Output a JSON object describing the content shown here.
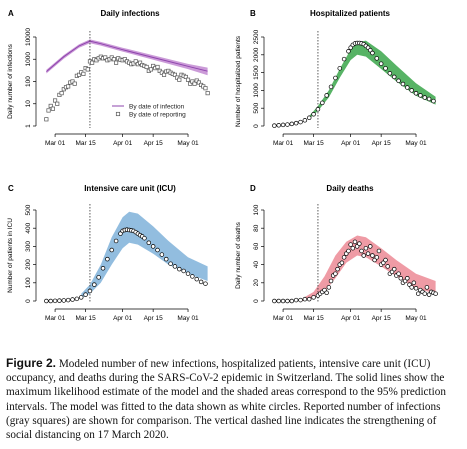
{
  "figure": {
    "caption_label": "Figure 2.",
    "caption_text": "Modeled number of new infections, hospitalized patients, intensive care unit (ICU) occupancy, and deaths during the SARS-CoV-2 epidemic in Switzerland. The solid lines show the maximum likelihood estimate of the model and the shaded areas correspond to the 95% prediction intervals. The model was fitted to the data shown as white circles. Reported number of infections (gray squares) are shown for comparison. The vertical dashed line indicates the strengthening of social distancing on 17 March 2020."
  },
  "chart_data": [
    {
      "panel": "A",
      "title": "Daily infections",
      "type": "line",
      "ylabel": "Daily number of infections",
      "y_scale": "log",
      "ylim": [
        1,
        10000
      ],
      "y_ticks": [
        1,
        10,
        100,
        1000,
        10000
      ],
      "y_tick_labels": [
        "1",
        "10",
        "100",
        "1000",
        "10000"
      ],
      "xlim": [
        "2020-02-24",
        "2020-05-12"
      ],
      "x_ticks": [
        "2020-03-01",
        "2020-03-15",
        "2020-04-01",
        "2020-04-15",
        "2020-05-01"
      ],
      "x_tick_labels": [
        "Mar 01",
        "Mar 15",
        "Apr 01",
        "Apr 15",
        "May 01"
      ],
      "vline": "2020-03-17",
      "band_color": "#c28ad1",
      "line_color": "#8e44ad",
      "legend": [
        "By date of infection",
        "By date of reporting"
      ],
      "series": [
        {
          "name": "By date of infection",
          "style": "line-band",
          "x": [
            "2020-02-26",
            "2020-03-05",
            "2020-03-12",
            "2020-03-17",
            "2020-03-22",
            "2020-04-01",
            "2020-04-15",
            "2020-05-01",
            "2020-05-10"
          ],
          "y": [
            280,
            1300,
            4000,
            6500,
            5000,
            2700,
            1200,
            480,
            290
          ],
          "lower": [
            230,
            1050,
            3300,
            5200,
            4100,
            2200,
            950,
            360,
            190
          ],
          "upper": [
            340,
            1550,
            4700,
            7800,
            6000,
            3300,
            1500,
            620,
            420
          ]
        },
        {
          "name": "By date of reporting",
          "style": "squares",
          "x": [
            "2020-02-26",
            "2020-02-27",
            "2020-02-28",
            "2020-02-29",
            "2020-03-01",
            "2020-03-02",
            "2020-03-03",
            "2020-03-04",
            "2020-03-05",
            "2020-03-06",
            "2020-03-07",
            "2020-03-08",
            "2020-03-09",
            "2020-03-10",
            "2020-03-11",
            "2020-03-12",
            "2020-03-13",
            "2020-03-14",
            "2020-03-15",
            "2020-03-16",
            "2020-03-17",
            "2020-03-18",
            "2020-03-19",
            "2020-03-20",
            "2020-03-21",
            "2020-03-22",
            "2020-03-23",
            "2020-03-24",
            "2020-03-25",
            "2020-03-26",
            "2020-03-27",
            "2020-03-28",
            "2020-03-29",
            "2020-03-30",
            "2020-03-31",
            "2020-04-01",
            "2020-04-02",
            "2020-04-03",
            "2020-04-04",
            "2020-04-05",
            "2020-04-06",
            "2020-04-07",
            "2020-04-08",
            "2020-04-09",
            "2020-04-10",
            "2020-04-11",
            "2020-04-12",
            "2020-04-13",
            "2020-04-14",
            "2020-04-15",
            "2020-04-16",
            "2020-04-17",
            "2020-04-18",
            "2020-04-19",
            "2020-04-20",
            "2020-04-21",
            "2020-04-22",
            "2020-04-23",
            "2020-04-24",
            "2020-04-25",
            "2020-04-26",
            "2020-04-27",
            "2020-04-28",
            "2020-04-29",
            "2020-04-30",
            "2020-05-01",
            "2020-05-02",
            "2020-05-03",
            "2020-05-04",
            "2020-05-05",
            "2020-05-06",
            "2020-05-07",
            "2020-05-08",
            "2020-05-09",
            "2020-05-10"
          ],
          "y": [
            2,
            5,
            8,
            6,
            14,
            10,
            25,
            30,
            45,
            55,
            60,
            90,
            100,
            80,
            180,
            200,
            260,
            220,
            400,
            350,
            800,
            700,
            1000,
            900,
            1100,
            1300,
            1100,
            1200,
            900,
            1000,
            1200,
            1000,
            700,
            1100,
            950,
            900,
            1000,
            800,
            700,
            600,
            650,
            800,
            600,
            700,
            550,
            500,
            450,
            300,
            350,
            500,
            400,
            450,
            300,
            250,
            200,
            280,
            300,
            250,
            220,
            200,
            150,
            120,
            200,
            180,
            160,
            120,
            80,
            100,
            80,
            110,
            90,
            70,
            60,
            50,
            30
          ]
        }
      ]
    },
    {
      "panel": "B",
      "title": "Hospitalized patients",
      "type": "line",
      "ylabel": "Number of hospitalized patients",
      "ylim": [
        0,
        2500
      ],
      "y_ticks": [
        0,
        500,
        1000,
        1500,
        2000,
        2500
      ],
      "xlim": [
        "2020-02-24",
        "2020-05-12"
      ],
      "x_ticks": [
        "2020-03-01",
        "2020-03-15",
        "2020-04-01",
        "2020-04-15",
        "2020-05-01"
      ],
      "x_tick_labels": [
        "Mar 01",
        "Mar 15",
        "Apr 01",
        "Apr 15",
        "May 01"
      ],
      "vline": "2020-03-17",
      "band_color": "#3aa64a",
      "series": [
        {
          "name": "model",
          "style": "band",
          "x": [
            "2020-03-13",
            "2020-03-17",
            "2020-03-22",
            "2020-03-27",
            "2020-04-01",
            "2020-04-04",
            "2020-04-08",
            "2020-04-15",
            "2020-04-22",
            "2020-05-01",
            "2020-05-10"
          ],
          "lower": [
            200,
            420,
            800,
            1350,
            1850,
            2000,
            1950,
            1600,
            1250,
            850,
            600
          ],
          "upper": [
            280,
            560,
            1000,
            1600,
            2150,
            2350,
            2400,
            2100,
            1700,
            1200,
            820
          ]
        },
        {
          "name": "data",
          "style": "circles",
          "x": [
            "2020-02-26",
            "2020-02-28",
            "2020-03-01",
            "2020-03-03",
            "2020-03-05",
            "2020-03-07",
            "2020-03-09",
            "2020-03-11",
            "2020-03-13",
            "2020-03-15",
            "2020-03-17",
            "2020-03-19",
            "2020-03-21",
            "2020-03-23",
            "2020-03-25",
            "2020-03-27",
            "2020-03-29",
            "2020-03-31",
            "2020-04-01",
            "2020-04-02",
            "2020-04-03",
            "2020-04-04",
            "2020-04-05",
            "2020-04-06",
            "2020-04-07",
            "2020-04-08",
            "2020-04-09",
            "2020-04-10",
            "2020-04-11",
            "2020-04-13",
            "2020-04-15",
            "2020-04-17",
            "2020-04-19",
            "2020-04-21",
            "2020-04-23",
            "2020-04-25",
            "2020-04-27",
            "2020-04-29",
            "2020-05-01",
            "2020-05-03",
            "2020-05-05",
            "2020-05-07",
            "2020-05-09"
          ],
          "y": [
            10,
            20,
            30,
            40,
            60,
            80,
            110,
            160,
            230,
            330,
            470,
            650,
            860,
            1100,
            1350,
            1620,
            1880,
            2100,
            2200,
            2280,
            2320,
            2330,
            2330,
            2320,
            2300,
            2250,
            2200,
            2130,
            2050,
            1900,
            1750,
            1620,
            1480,
            1380,
            1270,
            1180,
            1080,
            1000,
            920,
            860,
            800,
            760,
            700
          ]
        }
      ]
    },
    {
      "panel": "C",
      "title": "Intensive care unit (ICU)",
      "type": "line",
      "ylabel": "Number of patients in ICU",
      "ylim": [
        0,
        500
      ],
      "y_ticks": [
        0,
        100,
        200,
        300,
        400,
        500
      ],
      "xlim": [
        "2020-02-24",
        "2020-05-12"
      ],
      "x_ticks": [
        "2020-03-01",
        "2020-03-15",
        "2020-04-01",
        "2020-04-15",
        "2020-05-01"
      ],
      "x_tick_labels": [
        "Mar 01",
        "Mar 15",
        "Apr 01",
        "Apr 15",
        "May 01"
      ],
      "vline": "2020-03-17",
      "band_color": "#7fb1d9",
      "series": [
        {
          "name": "model",
          "style": "band",
          "x": [
            "2020-03-13",
            "2020-03-17",
            "2020-03-22",
            "2020-03-27",
            "2020-04-01",
            "2020-04-04",
            "2020-04-08",
            "2020-04-15",
            "2020-04-22",
            "2020-05-01",
            "2020-05-10"
          ],
          "lower": [
            15,
            40,
            100,
            200,
            290,
            320,
            310,
            260,
            200,
            150,
            110
          ],
          "upper": [
            40,
            90,
            200,
            350,
            460,
            490,
            480,
            410,
            330,
            240,
            190
          ]
        },
        {
          "name": "data",
          "style": "circles",
          "x": [
            "2020-02-26",
            "2020-02-28",
            "2020-03-01",
            "2020-03-03",
            "2020-03-05",
            "2020-03-07",
            "2020-03-09",
            "2020-03-11",
            "2020-03-13",
            "2020-03-15",
            "2020-03-17",
            "2020-03-19",
            "2020-03-21",
            "2020-03-23",
            "2020-03-25",
            "2020-03-27",
            "2020-03-29",
            "2020-03-31",
            "2020-04-01",
            "2020-04-02",
            "2020-04-03",
            "2020-04-04",
            "2020-04-05",
            "2020-04-06",
            "2020-04-07",
            "2020-04-08",
            "2020-04-09",
            "2020-04-10",
            "2020-04-11",
            "2020-04-13",
            "2020-04-15",
            "2020-04-17",
            "2020-04-19",
            "2020-04-21",
            "2020-04-23",
            "2020-04-25",
            "2020-04-27",
            "2020-04-29",
            "2020-05-01",
            "2020-05-03",
            "2020-05-05",
            "2020-05-07",
            "2020-05-09"
          ],
          "y": [
            0,
            0,
            1,
            2,
            3,
            5,
            8,
            12,
            20,
            35,
            55,
            90,
            130,
            180,
            230,
            280,
            330,
            370,
            385,
            390,
            392,
            390,
            388,
            385,
            378,
            370,
            362,
            355,
            345,
            320,
            300,
            280,
            255,
            230,
            205,
            190,
            175,
            165,
            150,
            135,
            120,
            105,
            95
          ]
        }
      ]
    },
    {
      "panel": "D",
      "title": "Daily deaths",
      "type": "line",
      "ylabel": "Daily number of deaths",
      "ylim": [
        0,
        100
      ],
      "y_ticks": [
        0,
        20,
        40,
        60,
        80,
        100
      ],
      "xlim": [
        "2020-02-24",
        "2020-05-12"
      ],
      "x_ticks": [
        "2020-03-01",
        "2020-03-15",
        "2020-04-01",
        "2020-04-15",
        "2020-05-01"
      ],
      "x_tick_labels": [
        "Mar 01",
        "Mar 15",
        "Apr 01",
        "Apr 15",
        "May 01"
      ],
      "vline": "2020-03-17",
      "band_color": "#ec8a95",
      "series": [
        {
          "name": "model",
          "style": "band",
          "x": [
            "2020-03-10",
            "2020-03-15",
            "2020-03-20",
            "2020-03-25",
            "2020-03-30",
            "2020-04-04",
            "2020-04-08",
            "2020-04-15",
            "2020-04-22",
            "2020-05-01",
            "2020-05-10"
          ],
          "lower": [
            0,
            3,
            10,
            25,
            42,
            50,
            48,
            38,
            27,
            14,
            8
          ],
          "upper": [
            3,
            10,
            27,
            50,
            65,
            72,
            70,
            58,
            45,
            30,
            22
          ]
        },
        {
          "name": "data",
          "style": "circles",
          "x": [
            "2020-02-26",
            "2020-02-28",
            "2020-03-01",
            "2020-03-03",
            "2020-03-05",
            "2020-03-07",
            "2020-03-09",
            "2020-03-11",
            "2020-03-13",
            "2020-03-15",
            "2020-03-17",
            "2020-03-18",
            "2020-03-19",
            "2020-03-20",
            "2020-03-21",
            "2020-03-22",
            "2020-03-23",
            "2020-03-24",
            "2020-03-25",
            "2020-03-26",
            "2020-03-27",
            "2020-03-28",
            "2020-03-29",
            "2020-03-30",
            "2020-03-31",
            "2020-04-01",
            "2020-04-02",
            "2020-04-03",
            "2020-04-04",
            "2020-04-05",
            "2020-04-06",
            "2020-04-07",
            "2020-04-08",
            "2020-04-09",
            "2020-04-10",
            "2020-04-11",
            "2020-04-12",
            "2020-04-13",
            "2020-04-14",
            "2020-04-15",
            "2020-04-16",
            "2020-04-17",
            "2020-04-18",
            "2020-04-19",
            "2020-04-20",
            "2020-04-21",
            "2020-04-22",
            "2020-04-23",
            "2020-04-24",
            "2020-04-25",
            "2020-04-26",
            "2020-04-27",
            "2020-04-28",
            "2020-04-29",
            "2020-04-30",
            "2020-05-01",
            "2020-05-02",
            "2020-05-03",
            "2020-05-04",
            "2020-05-05",
            "2020-05-06",
            "2020-05-07",
            "2020-05-08",
            "2020-05-09",
            "2020-05-10"
          ],
          "y": [
            0,
            0,
            0,
            0,
            0,
            1,
            1,
            2,
            2,
            4,
            6,
            8,
            10,
            12,
            9,
            15,
            22,
            28,
            30,
            35,
            40,
            42,
            48,
            52,
            55,
            62,
            58,
            65,
            60,
            63,
            55,
            50,
            58,
            52,
            60,
            50,
            45,
            48,
            55,
            40,
            42,
            45,
            38,
            30,
            32,
            35,
            28,
            30,
            25,
            20,
            22,
            25,
            18,
            15,
            20,
            14,
            8,
            12,
            10,
            8,
            15,
            7,
            10,
            9,
            8
          ]
        }
      ]
    }
  ]
}
